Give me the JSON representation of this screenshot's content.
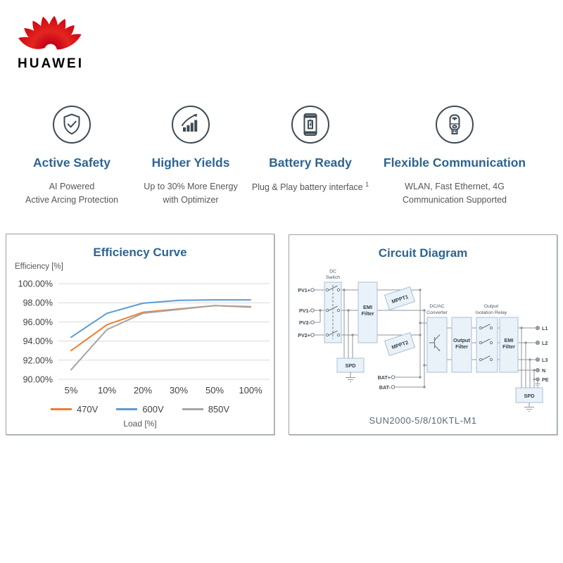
{
  "brand": {
    "wordmark": "HUAWEI"
  },
  "colors": {
    "huawei_red": "#cf0a18",
    "title_blue": "#2e6492",
    "subtitle_gray": "#565656",
    "panel_border_gray": "#99a1a8",
    "grid_gray": "#d9d9d9"
  },
  "features": [
    {
      "icon": "shield-check-icon",
      "title": "Active Safety",
      "line1": "AI Powered",
      "line2": "Active Arcing Protection"
    },
    {
      "icon": "growth-chart-icon",
      "title": "Higher Yields",
      "line1": "Up to 30% More Energy",
      "line2": "with Optimizer"
    },
    {
      "icon": "battery-device-icon",
      "title": "Battery Ready",
      "line1": "Plug & Play battery interface",
      "superscript": "1"
    },
    {
      "icon": "smart-dongle-icon",
      "title": "Flexible Communication",
      "line1": "WLAN, Fast Ethernet, 4G",
      "line2": "Communication Supported"
    }
  ],
  "chart_data": {
    "type": "line",
    "title": "Efficiency Curve",
    "xlabel": "Load [%]",
    "ylabel": "Efficiency [%]",
    "categories": [
      "5%",
      "10%",
      "20%",
      "30%",
      "50%",
      "100%"
    ],
    "series": [
      {
        "name": "470V",
        "color": "#ED7D31",
        "values": [
          93.0,
          95.7,
          97.0,
          97.35,
          97.7,
          97.55
        ]
      },
      {
        "name": "600V",
        "color": "#5B9BD5",
        "values": [
          94.4,
          96.9,
          97.95,
          98.25,
          98.3,
          98.3
        ]
      },
      {
        "name": "850V",
        "color": "#A5A5A5",
        "values": [
          91.0,
          95.2,
          96.9,
          97.3,
          97.7,
          97.6
        ]
      }
    ],
    "ylim": [
      90,
      100
    ],
    "y_step": 2,
    "y_tick_format": "percent_2dp",
    "grid": "horizontal",
    "legend_position": "bottom"
  },
  "circuit_panel": {
    "title": "Circuit Diagram",
    "caption": "SUN2000-5/8/10KTL-M1",
    "labels": {
      "dc_line1": "DC",
      "dc_line2": "Switch",
      "emi_line1": "EMI",
      "emi_line2": "Filter",
      "mppt1": "MPPT1",
      "mppt2": "MPPT2",
      "spd": "SPD",
      "spd2": "SPD",
      "dcac_line1": "DC/AC",
      "dcac_line2": "Converter",
      "outf_line1": "Output",
      "outf_line2": "Filter",
      "relay_line1": "Output",
      "relay_line2": "Isolation Relay",
      "emi2_line1": "EMI",
      "emi2_line2": "Filter",
      "pv1_plus": "PV1+",
      "pv1_minus": "PV1-",
      "pv2_minus": "PV2-",
      "pv2_plus": "PV2+",
      "bat_plus": "BAT+",
      "bat_minus": "BAT-",
      "l1": "L1",
      "l2": "L2",
      "l3": "L3",
      "n": "N",
      "pe": "PE"
    }
  }
}
